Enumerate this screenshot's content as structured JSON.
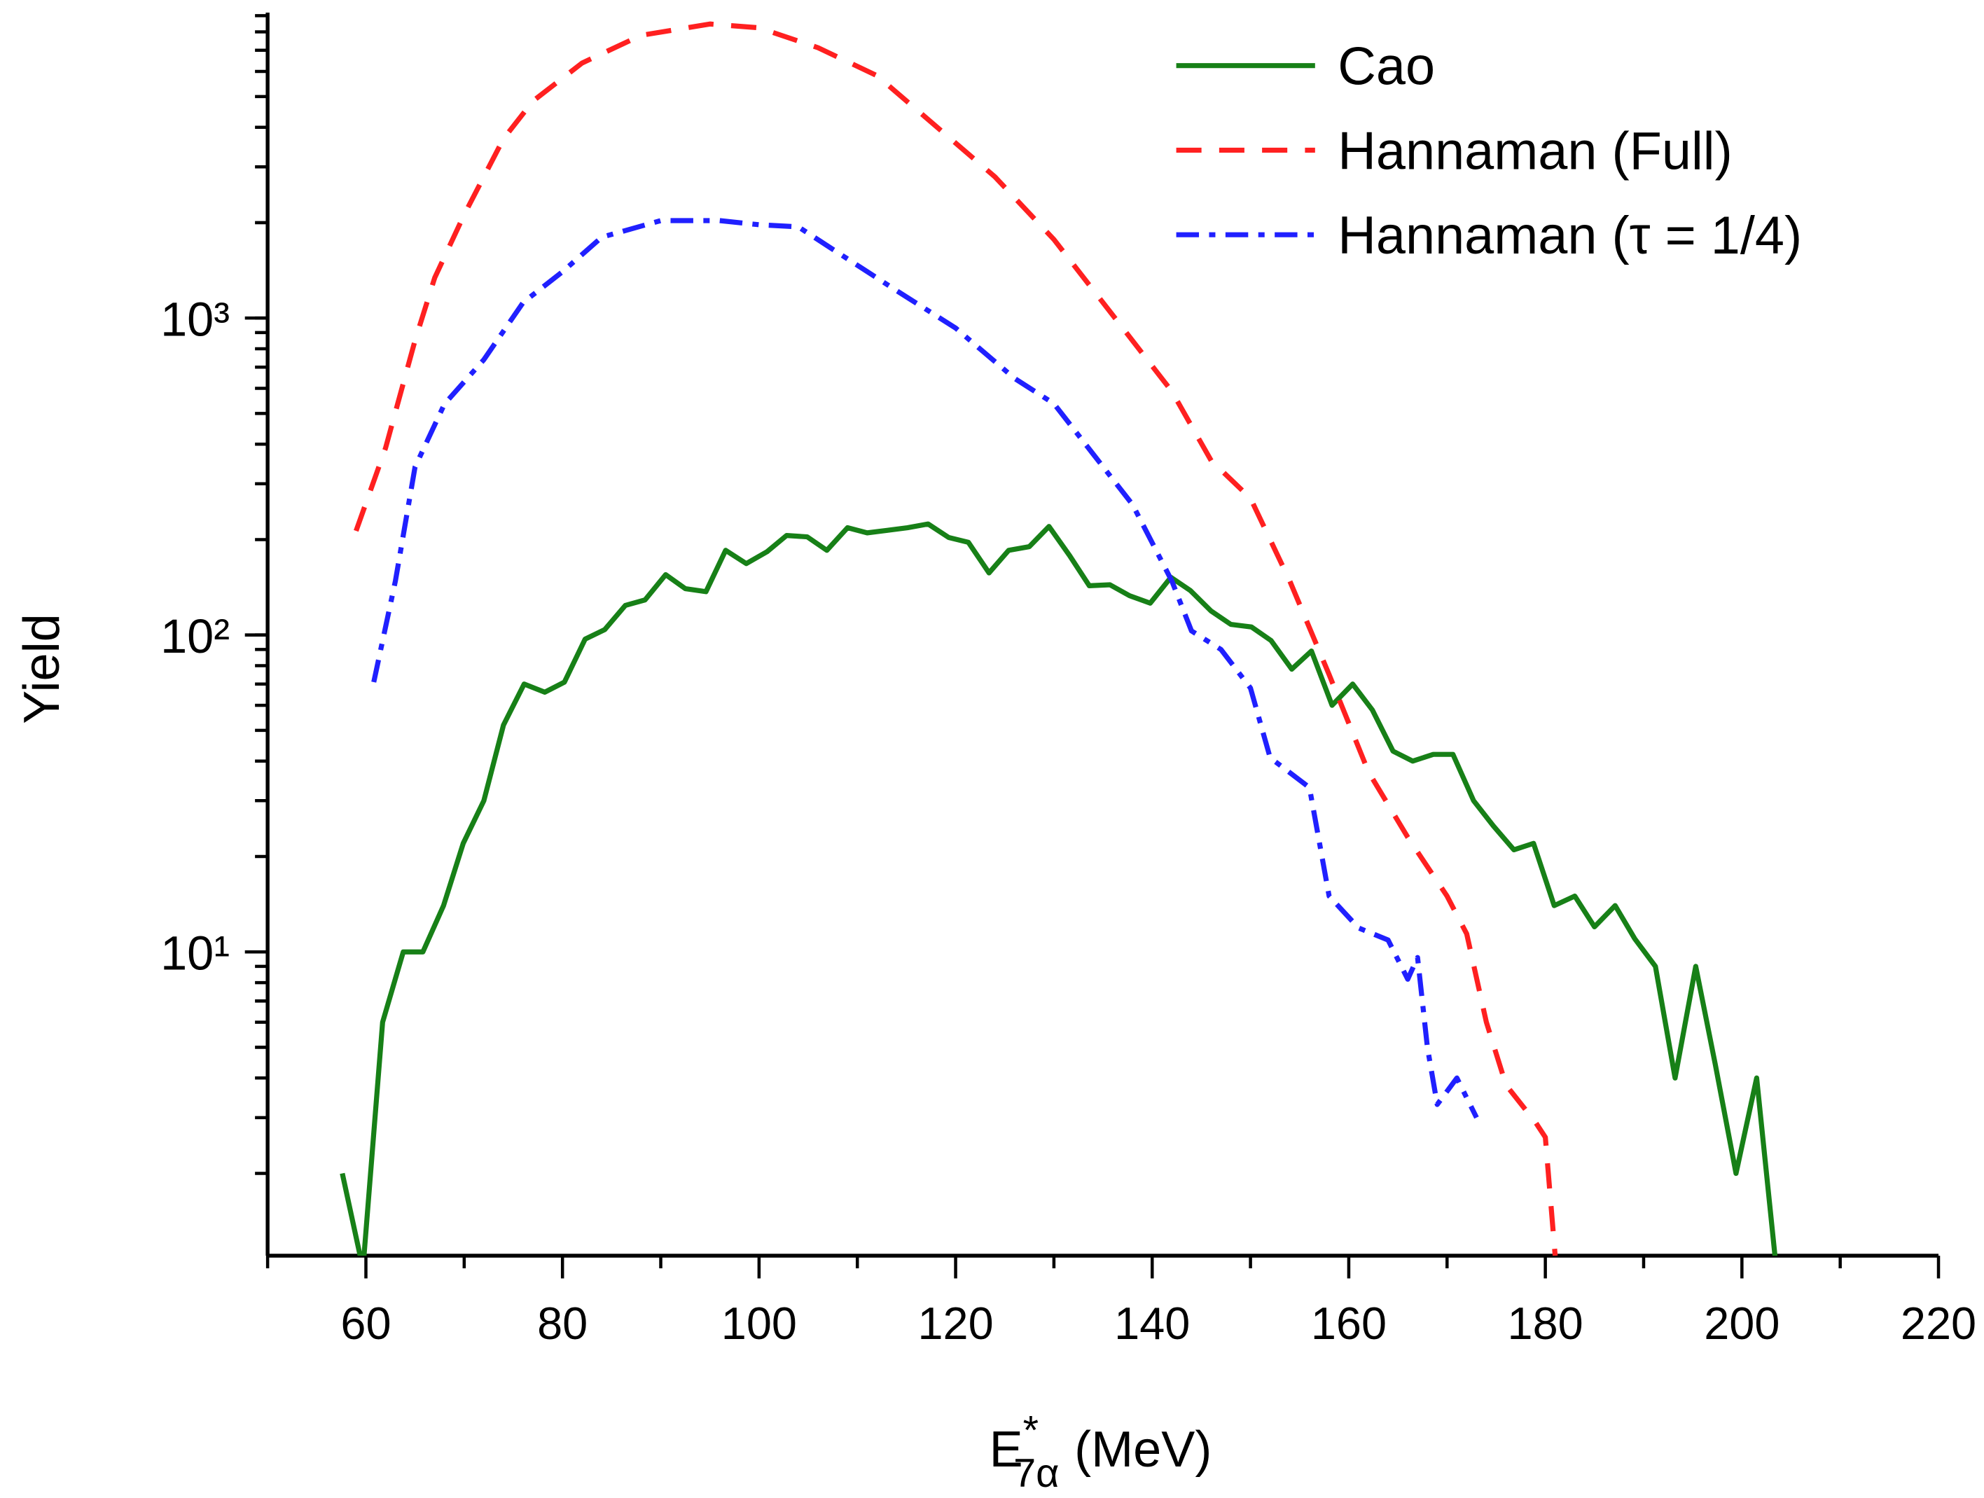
{
  "chart_data": {
    "type": "line",
    "y_label": "Yield",
    "x_label": {
      "base": "E",
      "superscript": "*",
      "subscript": "7α",
      "unit": "(MeV)"
    },
    "xlim": [
      50,
      220
    ],
    "xticks": [
      60,
      80,
      100,
      120,
      140,
      160,
      180,
      200,
      220
    ],
    "ylim": [
      1.1,
      9200
    ],
    "yscale": "log",
    "yticks": [
      {
        "value": 10,
        "label": "10¹"
      },
      {
        "value": 100,
        "label": "10²"
      },
      {
        "value": 1000,
        "label": "10³"
      }
    ],
    "legend": "upper right",
    "series": [
      {
        "name": "Cao",
        "color": "#178017",
        "dash": "solid",
        "x": [
          57.6,
          59.7,
          61.7,
          63.8,
          65.8,
          67.9,
          69.9,
          72.0,
          74.0,
          76.1,
          78.2,
          80.2,
          82.3,
          84.3,
          86.4,
          88.4,
          90.5,
          92.5,
          94.6,
          96.6,
          98.7,
          100.8,
          102.8,
          104.9,
          106.9,
          109.0,
          111.0,
          113.1,
          115.1,
          117.2,
          119.3,
          121.3,
          123.4,
          125.4,
          127.5,
          129.5,
          131.6,
          133.6,
          135.7,
          137.7,
          139.8,
          141.9,
          143.9,
          146.0,
          148.0,
          150.1,
          152.1,
          154.2,
          156.2,
          158.3,
          160.4,
          162.4,
          164.5,
          166.5,
          168.6,
          170.6,
          172.7,
          174.7,
          176.8,
          178.8,
          180.9,
          183.0,
          185.0,
          187.1,
          189.1,
          191.2,
          193.2,
          195.3,
          197.3,
          199.4,
          201.5,
          203.5
        ],
        "values": [
          2,
          1,
          6,
          10,
          10,
          14,
          22,
          30,
          52,
          70,
          66,
          71,
          97,
          104,
          124,
          129,
          155,
          140,
          137,
          185,
          168,
          183,
          206,
          204,
          185,
          218,
          210,
          214,
          218,
          224,
          203,
          196,
          157,
          185,
          190,
          220,
          178,
          143,
          144,
          133,
          126,
          152,
          138,
          119,
          108,
          106,
          96,
          78,
          89,
          60,
          70,
          58,
          43,
          40,
          42,
          42,
          30,
          25,
          21,
          22,
          14,
          15,
          12,
          14,
          11,
          9,
          4,
          9,
          4.4,
          2,
          4,
          1
        ]
      },
      {
        "name": "Hannaman (Full)",
        "color": "#ff2020",
        "dash": "dashed",
        "x": [
          59,
          62,
          65,
          67,
          70,
          74,
          77,
          82,
          88,
          95,
          100,
          106,
          112,
          118,
          124,
          130,
          136,
          142,
          146,
          150,
          154,
          158,
          162,
          166,
          170,
          172,
          174,
          176,
          179,
          180,
          181
        ],
        "values": [
          213,
          389,
          850,
          1340,
          2120,
          3680,
          4840,
          6380,
          7800,
          8470,
          8240,
          7130,
          5820,
          4030,
          2790,
          1770,
          1020,
          587,
          355,
          270,
          148,
          75,
          37,
          23,
          15,
          11.4,
          6,
          3.8,
          2.9,
          2.6,
          1.1
        ]
      },
      {
        "name": "Hannaman (τ = 1/4)",
        "color": "#2020ff",
        "dash": "dashdot",
        "x": [
          60.8,
          63,
          65,
          68,
          72,
          76,
          80,
          84,
          90,
          96,
          100,
          104,
          108,
          114,
          120,
          126,
          130,
          134,
          138,
          142,
          144,
          147,
          150,
          152,
          156,
          158,
          161,
          164,
          166,
          167,
          168,
          169,
          171,
          173
        ],
        "values": [
          71,
          148,
          339,
          536,
          739,
          1120,
          1400,
          1800,
          2030,
          2030,
          1970,
          1940,
          1610,
          1220,
          930,
          645,
          537,
          372,
          258,
          148,
          103,
          90,
          68,
          41,
          33,
          15,
          11.9,
          10.9,
          8.2,
          9.6,
          5,
          3.3,
          4,
          3
        ]
      }
    ]
  }
}
